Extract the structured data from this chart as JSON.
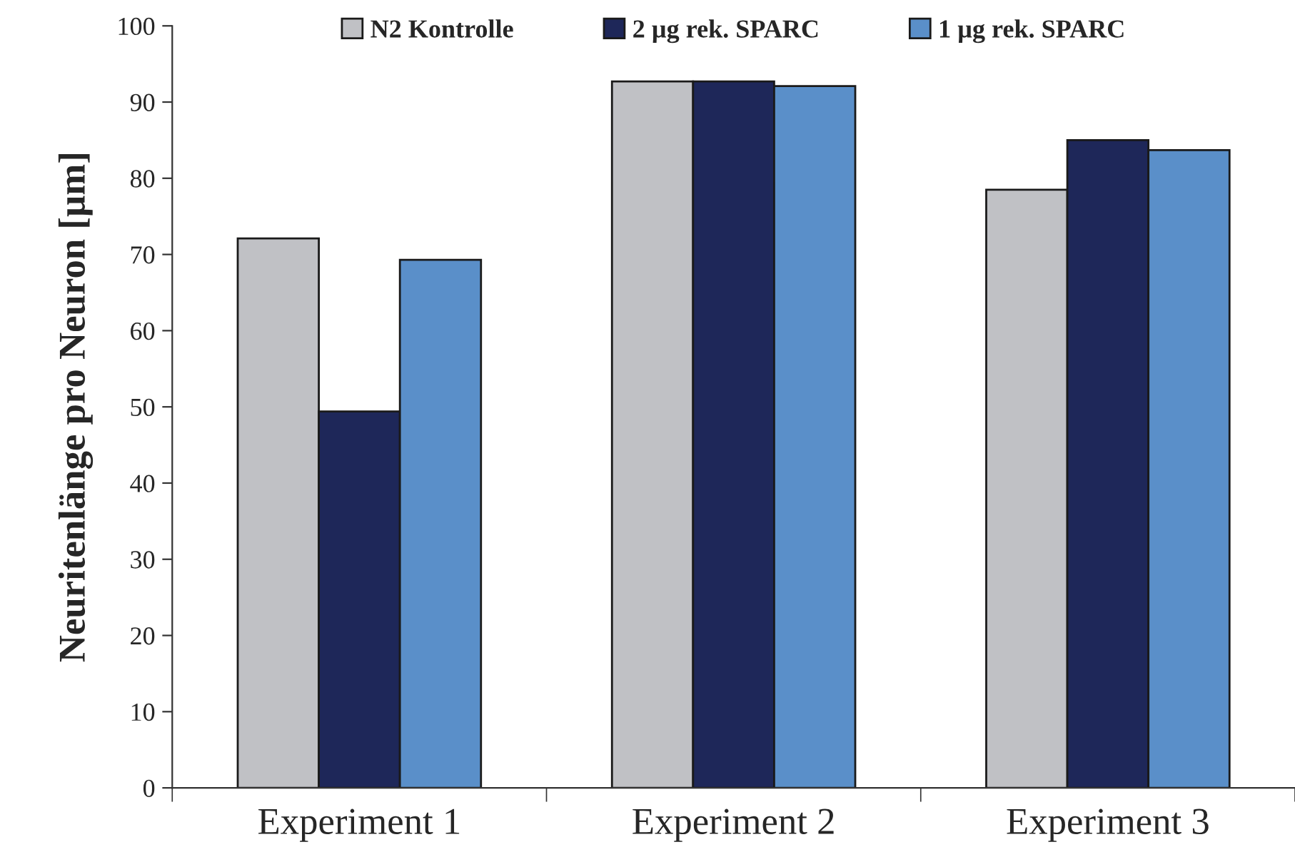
{
  "chart_data": {
    "type": "bar",
    "ylabel": "Neuritenlänge pro Neuron [µm]",
    "categories": [
      "Experiment 1",
      "Experiment 2",
      "Experiment 3"
    ],
    "series": [
      {
        "name": "N2 Kontrolle",
        "color": "#c0c1c5",
        "values": [
          72.1,
          92.7,
          78.5
        ]
      },
      {
        "name": "2 µg rek. SPARC",
        "color": "#1e2759",
        "values": [
          49.4,
          92.7,
          85.0
        ]
      },
      {
        "name": "1 µg rek. SPARC",
        "color": "#5a8fc9",
        "values": [
          69.3,
          92.1,
          83.7
        ]
      }
    ],
    "ylim": [
      0,
      100
    ],
    "yticks": [
      0,
      10,
      20,
      30,
      40,
      50,
      60,
      70,
      80,
      90,
      100
    ],
    "legend": "top",
    "grid": false
  }
}
